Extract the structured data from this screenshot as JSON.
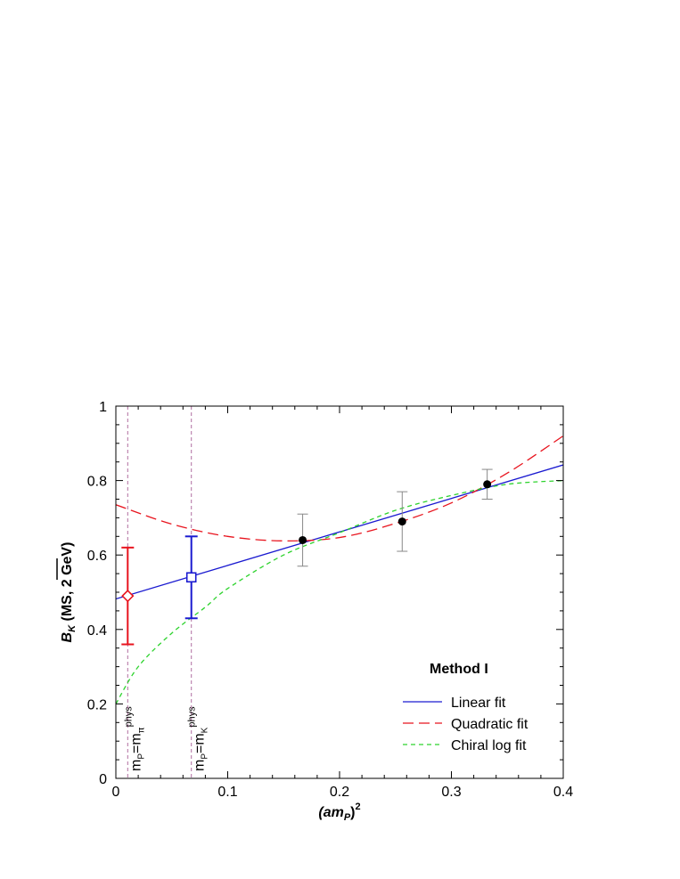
{
  "chart_data": {
    "type": "scatter",
    "xlabel": "(am",
    "xlabel_sub": "P",
    "xlabel_sup": "2",
    "xlabel_close": ")",
    "ylabel": "B",
    "ylabel_sub": "K",
    "ylabel_rest": "(MS, 2 GeV)",
    "xlim": [
      0,
      0.4
    ],
    "ylim": [
      0,
      1
    ],
    "x_ticks": [
      0,
      0.1,
      0.2,
      0.3,
      0.4
    ],
    "x_tick_labels": [
      "0",
      "0.1",
      "0.2",
      "0.3",
      "0.4"
    ],
    "y_ticks": [
      0,
      0.2,
      0.4,
      0.6,
      0.8,
      1
    ],
    "y_tick_labels": [
      "0",
      "0.2",
      "0.4",
      "0.6",
      "0.8",
      "1"
    ],
    "grid": false,
    "legend_title": "Method I",
    "legend_position": "bottom-right",
    "data_points": [
      {
        "x": 0.167,
        "y": 0.64,
        "err": 0.07
      },
      {
        "x": 0.256,
        "y": 0.69,
        "err": 0.08
      },
      {
        "x": 0.332,
        "y": 0.79,
        "err": 0.04
      }
    ],
    "extrapolated_points": [
      {
        "x": 0.0106,
        "y": 0.49,
        "err": 0.13,
        "marker": "diamond",
        "color": "#e8141e"
      },
      {
        "x": 0.0675,
        "y": 0.54,
        "err": 0.11,
        "marker": "square",
        "color": "#1a1ad0"
      }
    ],
    "vertical_lines": [
      {
        "x": 0.0106,
        "label": "m",
        "label_sub": "P",
        "label_mid": "=m",
        "label_sub2": "π",
        "label_sup": "phys"
      },
      {
        "x": 0.0675,
        "label": "m",
        "label_sub": "P",
        "label_mid": "=m",
        "label_sub2": "K",
        "label_sup": "phys"
      }
    ],
    "series": [
      {
        "name": "Linear fit",
        "color": "#1a1ad0",
        "dash": "solid",
        "x": [
          0,
          0.4
        ],
        "y": [
          0.482,
          0.842
        ]
      },
      {
        "name": "Quadratic fit",
        "color": "#e8141e",
        "dash": "long",
        "x": [
          0,
          0.05,
          0.1,
          0.15,
          0.2,
          0.25,
          0.3,
          0.35,
          0.4
        ],
        "y": [
          0.735,
          0.683,
          0.65,
          0.638,
          0.647,
          0.685,
          0.74,
          0.82,
          0.92
        ]
      },
      {
        "name": "Chiral log fit",
        "color": "#2ed32e",
        "dash": "short",
        "x": [
          0,
          0.02,
          0.05,
          0.08,
          0.1,
          0.15,
          0.2,
          0.25,
          0.3,
          0.35,
          0.4
        ],
        "y": [
          0.2,
          0.3,
          0.39,
          0.46,
          0.51,
          0.6,
          0.66,
          0.72,
          0.76,
          0.79,
          0.8
        ]
      }
    ]
  }
}
